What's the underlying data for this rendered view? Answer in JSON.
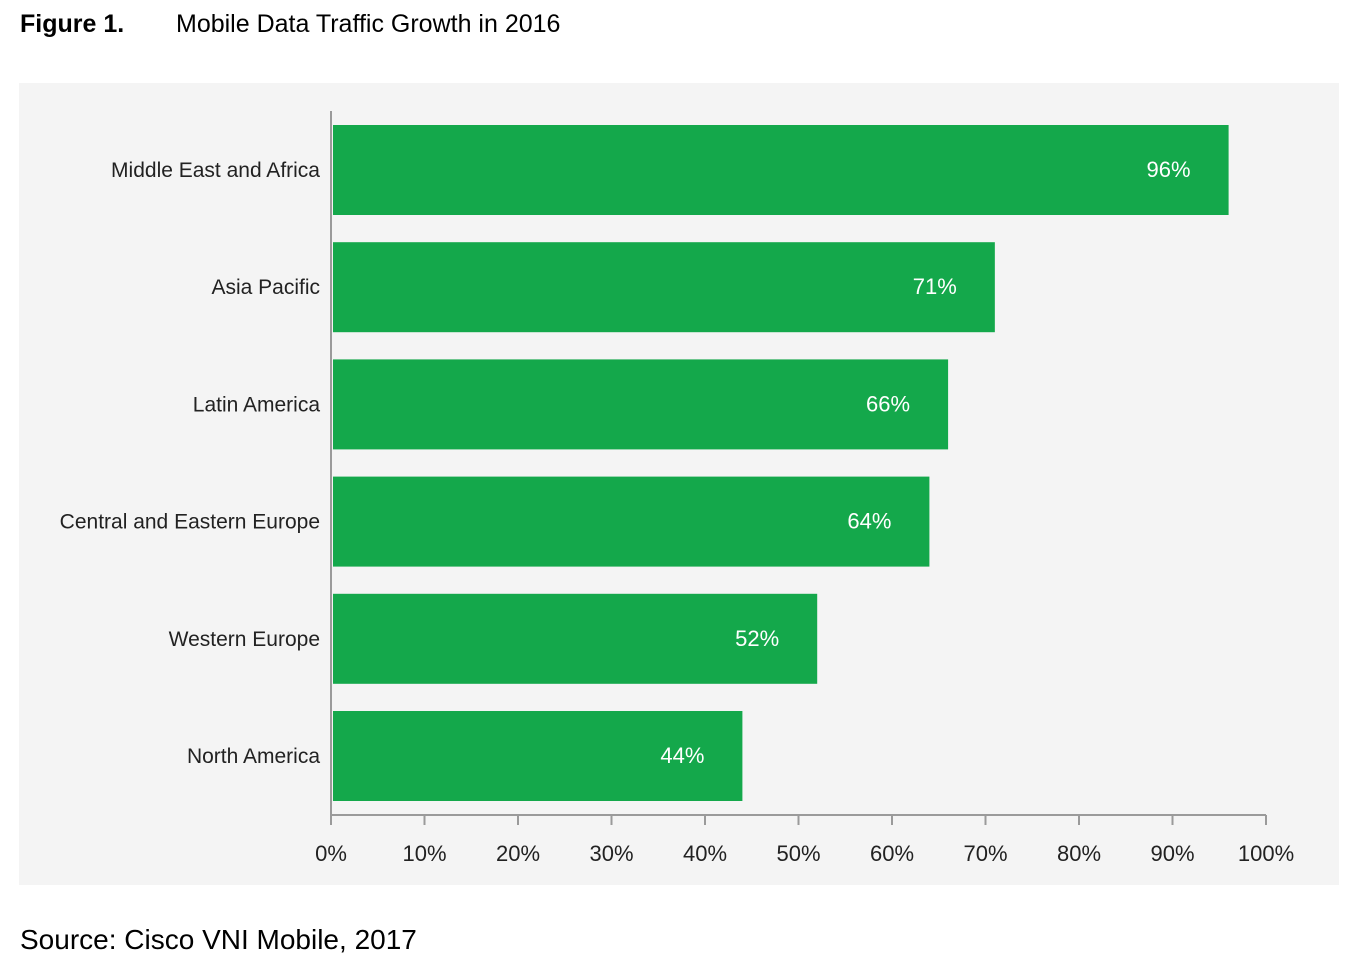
{
  "figure": {
    "label": "Figure 1.",
    "title": "Mobile Data Traffic Growth in 2016",
    "source": "Source: Cisco VNI Mobile, 2017"
  },
  "colors": {
    "bar": "#14a84b",
    "panel": "#f4f4f4",
    "axis": "#9a9a9a"
  },
  "chart_data": {
    "type": "bar",
    "orientation": "horizontal",
    "categories": [
      "Middle East and Africa",
      "Asia Pacific",
      "Latin America",
      "Central and Eastern Europe",
      "Western Europe",
      "North America"
    ],
    "values": [
      96,
      71,
      66,
      64,
      52,
      44
    ],
    "value_labels": [
      "96%",
      "71%",
      "66%",
      "64%",
      "52%",
      "44%"
    ],
    "xlim": [
      0,
      100
    ],
    "xticks": [
      0,
      10,
      20,
      30,
      40,
      50,
      60,
      70,
      80,
      90,
      100
    ],
    "xtick_labels": [
      "0%",
      "10%",
      "20%",
      "30%",
      "40%",
      "50%",
      "60%",
      "70%",
      "80%",
      "90%",
      "100%"
    ],
    "grid": false,
    "legend": "none"
  }
}
